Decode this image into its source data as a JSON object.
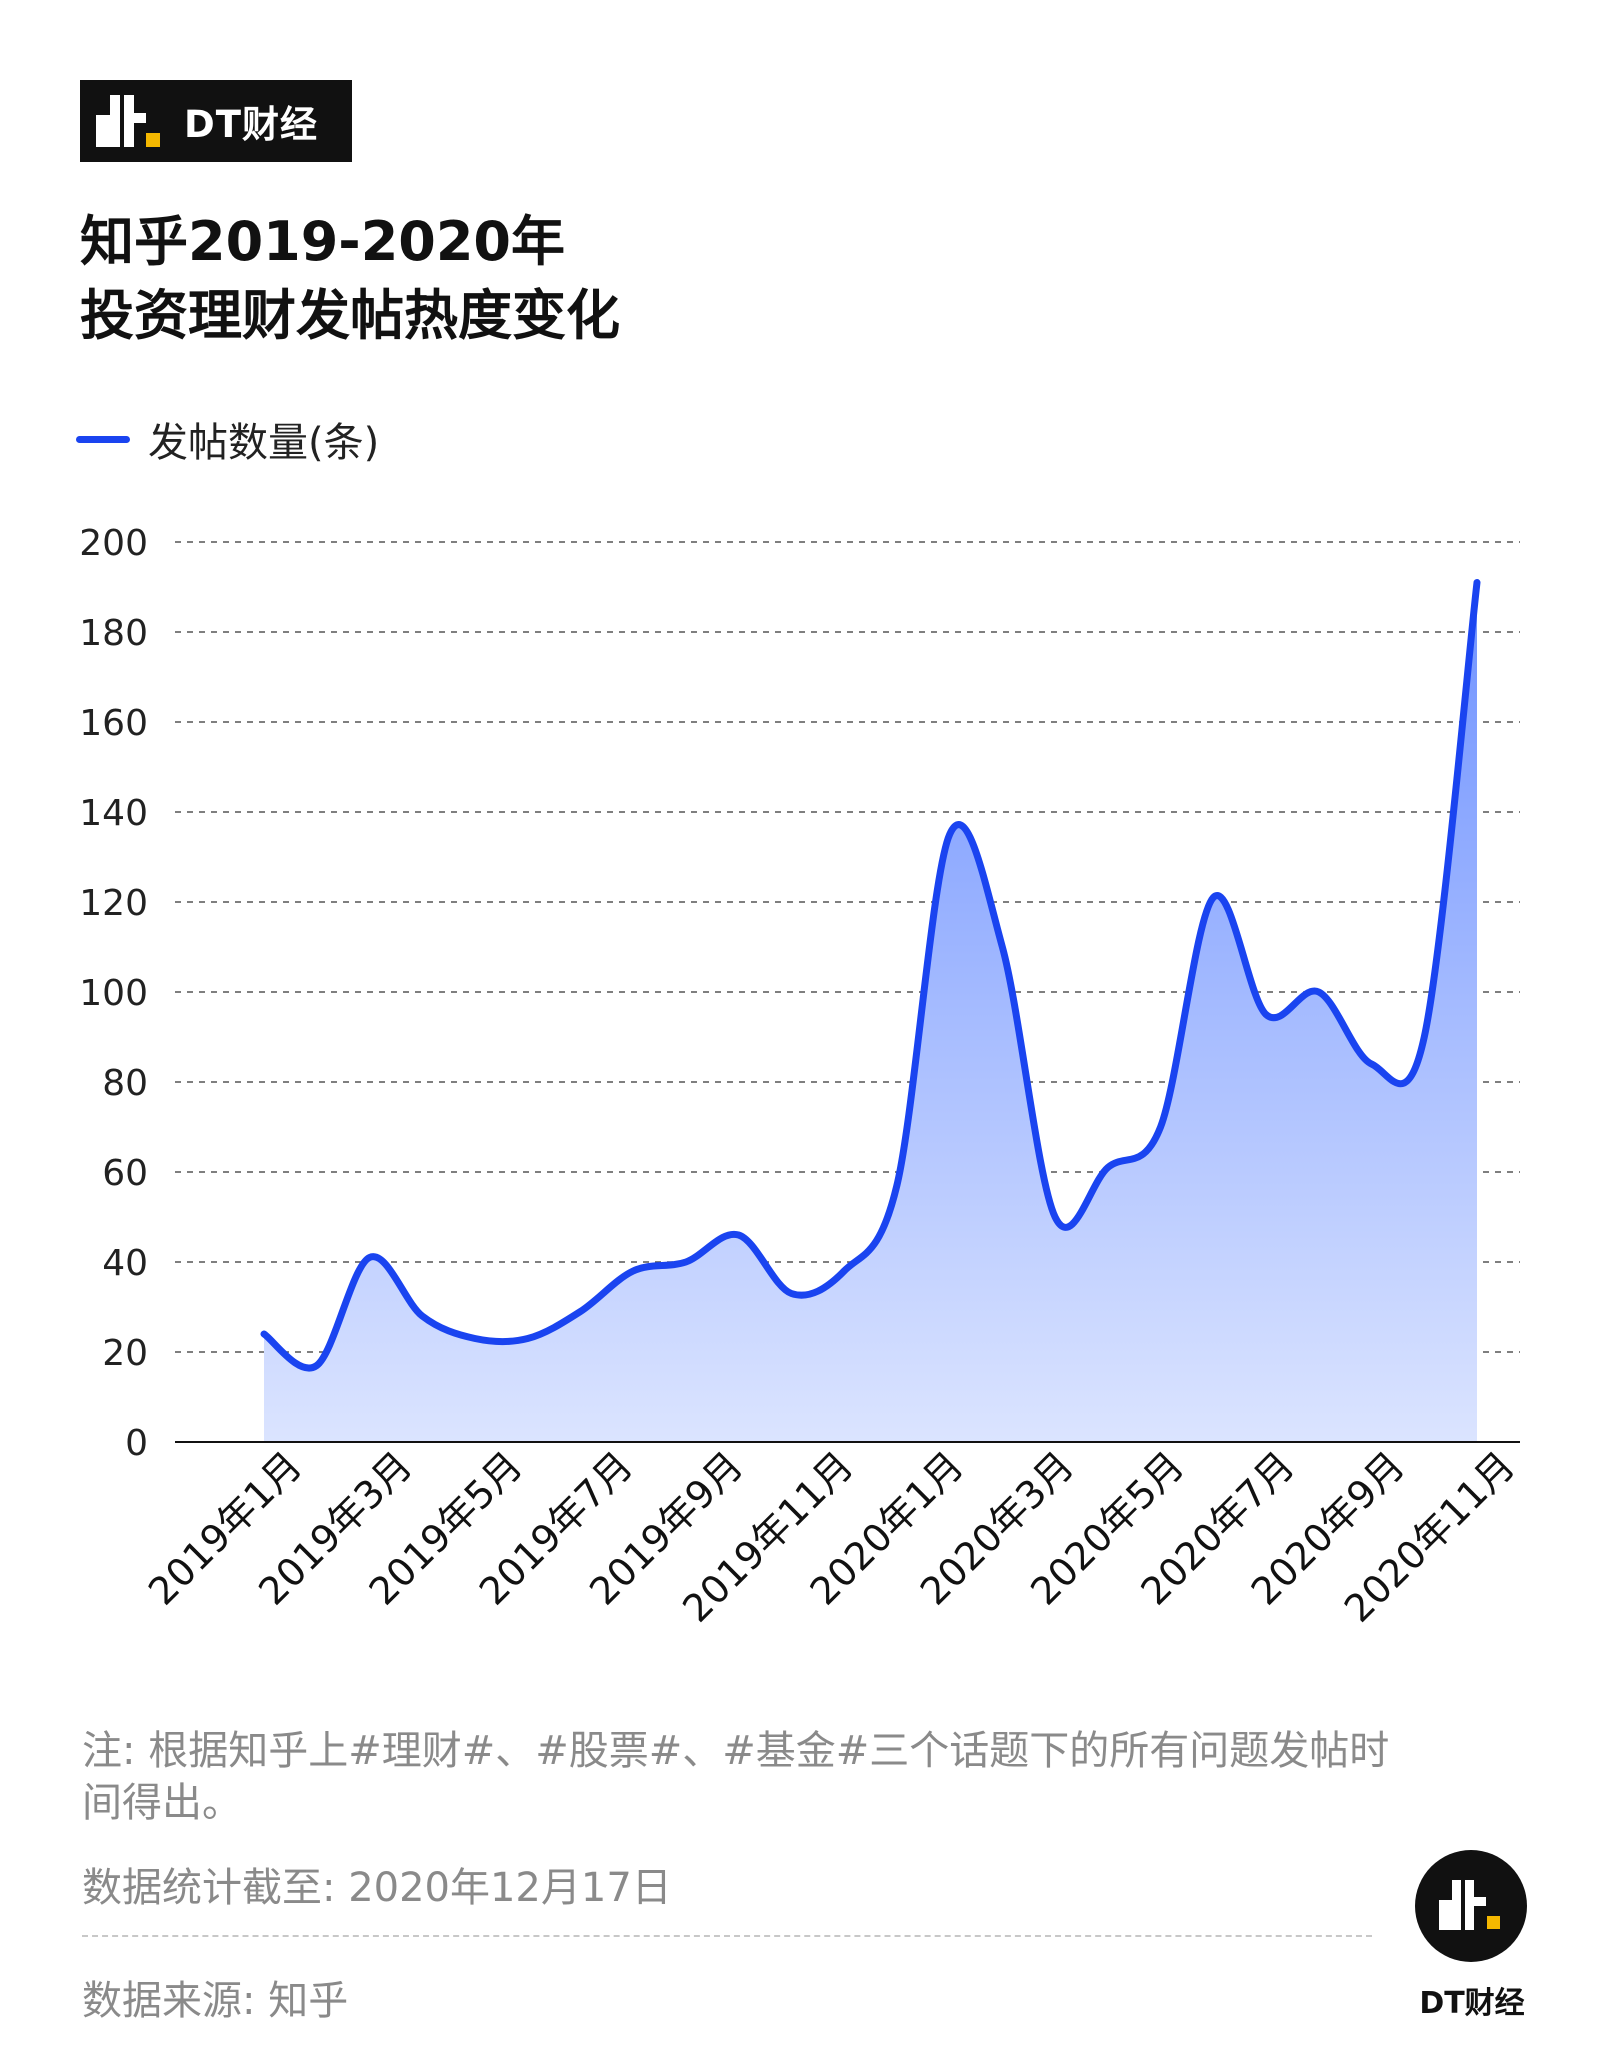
{
  "brand": {
    "name": "DT财经",
    "badge_name": "DT财经"
  },
  "title": {
    "line1": "知乎2019-2020年",
    "line2": "投资理财发帖热度变化"
  },
  "legend": {
    "label": "发帖数量(条)"
  },
  "colors": {
    "line": "#1a44f0",
    "area_top": "#6f92ff",
    "area_bottom": "#dbe4ff",
    "logo_accent": "#f5b800"
  },
  "chart_data": {
    "type": "area",
    "title": "知乎2019-2020年 投资理财发帖热度变化",
    "xlabel": "",
    "ylabel": "",
    "ylim": [
      0,
      200
    ],
    "yticks": [
      0,
      20,
      40,
      60,
      80,
      100,
      120,
      140,
      160,
      180,
      200
    ],
    "x_tick_labels": [
      "2019年1月",
      "2019年3月",
      "2019年5月",
      "2019年7月",
      "2019年9月",
      "2019年11月",
      "2020年1月",
      "2020年3月",
      "2020年5月",
      "2020年7月",
      "2020年9月",
      "2020年11月"
    ],
    "grid": true,
    "legend_position": "top-left",
    "series": [
      {
        "name": "发帖数量(条)",
        "values": [
          {
            "x": "2019年1月",
            "y": 24
          },
          {
            "x": "2019年2月",
            "y": 17
          },
          {
            "x": "2019年3月",
            "y": 41
          },
          {
            "x": "2019年4月",
            "y": 28
          },
          {
            "x": "2019年5月",
            "y": 23
          },
          {
            "x": "2019年6月",
            "y": 23
          },
          {
            "x": "2019年7月",
            "y": 29
          },
          {
            "x": "2019年8月",
            "y": 38
          },
          {
            "x": "2019年9月",
            "y": 40
          },
          {
            "x": "2019年10月",
            "y": 46
          },
          {
            "x": "2019年11月",
            "y": 33
          },
          {
            "x": "2019年12月",
            "y": 38
          },
          {
            "x": "2020年1月",
            "y": 57
          },
          {
            "x": "2020年2月",
            "y": 135
          },
          {
            "x": "2020年3月",
            "y": 110
          },
          {
            "x": "2020年4月",
            "y": 50
          },
          {
            "x": "2020年5月",
            "y": 61
          },
          {
            "x": "2020年6月",
            "y": 70
          },
          {
            "x": "2020年7月",
            "y": 121
          },
          {
            "x": "2020年8月",
            "y": 95
          },
          {
            "x": "2020年9月",
            "y": 100
          },
          {
            "x": "2020年10月",
            "y": 84
          },
          {
            "x": "2020年11月",
            "y": 90
          },
          {
            "x": "2020年12月",
            "y": 191
          }
        ]
      }
    ]
  },
  "footer": {
    "note": "注: 根据知乎上#理财#、#股票#、#基金#三个话题下的所有问题发帖时间得出。",
    "cutoff": "数据统计截至: 2020年12月17日",
    "source": "数据来源: 知乎"
  }
}
